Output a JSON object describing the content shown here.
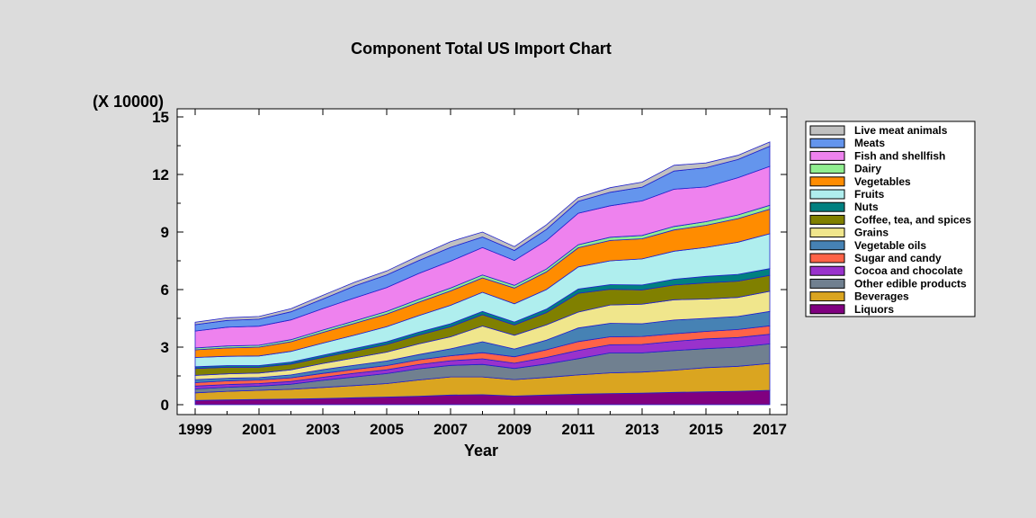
{
  "chart_data": {
    "type": "area",
    "stacked": true,
    "title": "Component Total US Import Chart",
    "xlabel": "Year",
    "ylabel": "",
    "y_multiplier": "(X 10000)",
    "xlim": [
      1999,
      2017
    ],
    "ylim": [
      0,
      15
    ],
    "x_ticks": [
      1999,
      2001,
      2003,
      2005,
      2007,
      2009,
      2011,
      2013,
      2015,
      2017
    ],
    "x_tick_labels": [
      "1999",
      "2001",
      "2003",
      "2005",
      "2007",
      "2009",
      "2011",
      "2013",
      "2015",
      "2017"
    ],
    "y_ticks": [
      0,
      3,
      6,
      9,
      12,
      15
    ],
    "y_tick_labels": [
      "0",
      "3",
      "6",
      "9",
      "12",
      "15"
    ],
    "legend_position": "right",
    "x": [
      1999,
      2000,
      2001,
      2002,
      2003,
      2004,
      2005,
      2006,
      2007,
      2008,
      2009,
      2010,
      2011,
      2012,
      2013,
      2014,
      2015,
      2016,
      2017
    ],
    "series": [
      {
        "name": "Liquors",
        "color": "#800080",
        "values": [
          0.22,
          0.25,
          0.27,
          0.29,
          0.32,
          0.36,
          0.4,
          0.44,
          0.5,
          0.52,
          0.45,
          0.5,
          0.55,
          0.58,
          0.6,
          0.64,
          0.67,
          0.7,
          0.75
        ]
      },
      {
        "name": "Beverages",
        "color": "#daa520",
        "values": [
          0.4,
          0.45,
          0.48,
          0.51,
          0.58,
          0.64,
          0.7,
          0.85,
          0.95,
          0.93,
          0.86,
          0.92,
          1.0,
          1.08,
          1.1,
          1.16,
          1.26,
          1.3,
          1.4
        ]
      },
      {
        "name": "Other edible products",
        "color": "#708090",
        "values": [
          0.2,
          0.21,
          0.22,
          0.27,
          0.37,
          0.45,
          0.52,
          0.58,
          0.6,
          0.65,
          0.58,
          0.7,
          0.85,
          1.04,
          1.0,
          1.02,
          0.99,
          1.0,
          1.02
        ]
      },
      {
        "name": "Cocoa and chocolate",
        "color": "#9932cc",
        "values": [
          0.15,
          0.14,
          0.13,
          0.14,
          0.16,
          0.19,
          0.2,
          0.22,
          0.24,
          0.29,
          0.27,
          0.34,
          0.43,
          0.42,
          0.44,
          0.48,
          0.51,
          0.5,
          0.5
        ]
      },
      {
        "name": "Sugar and candy",
        "color": "#ff6347",
        "values": [
          0.18,
          0.19,
          0.19,
          0.19,
          0.2,
          0.2,
          0.22,
          0.25,
          0.26,
          0.32,
          0.34,
          0.4,
          0.46,
          0.42,
          0.42,
          0.4,
          0.39,
          0.42,
          0.44
        ]
      },
      {
        "name": "Vegetable oils",
        "color": "#4682b4",
        "values": [
          0.16,
          0.14,
          0.12,
          0.15,
          0.2,
          0.22,
          0.24,
          0.27,
          0.36,
          0.57,
          0.4,
          0.5,
          0.71,
          0.7,
          0.66,
          0.71,
          0.68,
          0.68,
          0.75
        ]
      },
      {
        "name": "Grains",
        "color": "#f0e68c",
        "values": [
          0.22,
          0.23,
          0.24,
          0.27,
          0.32,
          0.38,
          0.46,
          0.56,
          0.63,
          0.82,
          0.72,
          0.8,
          0.83,
          0.96,
          1.02,
          1.06,
          1.01,
          0.99,
          1.05
        ]
      },
      {
        "name": "Coffee, tea, and spices",
        "color": "#808000",
        "values": [
          0.36,
          0.34,
          0.3,
          0.3,
          0.32,
          0.36,
          0.4,
          0.46,
          0.52,
          0.59,
          0.54,
          0.64,
          0.98,
          0.82,
          0.74,
          0.77,
          0.84,
          0.85,
          0.83
        ]
      },
      {
        "name": "Nuts",
        "color": "#008080",
        "values": [
          0.09,
          0.09,
          0.09,
          0.1,
          0.11,
          0.13,
          0.14,
          0.15,
          0.16,
          0.17,
          0.15,
          0.18,
          0.22,
          0.24,
          0.26,
          0.3,
          0.34,
          0.35,
          0.35
        ]
      },
      {
        "name": "Fruits",
        "color": "#afeeee",
        "values": [
          0.48,
          0.48,
          0.5,
          0.56,
          0.63,
          0.7,
          0.79,
          0.86,
          0.96,
          1.0,
          0.95,
          1.02,
          1.15,
          1.24,
          1.36,
          1.46,
          1.51,
          1.68,
          1.82
        ]
      },
      {
        "name": "Vegetables",
        "color": "#ff8c00",
        "values": [
          0.4,
          0.44,
          0.46,
          0.5,
          0.56,
          0.61,
          0.65,
          0.7,
          0.75,
          0.75,
          0.82,
          0.92,
          1.0,
          1.06,
          1.05,
          1.11,
          1.15,
          1.23,
          1.28
        ]
      },
      {
        "name": "Dairy",
        "color": "#90ee90",
        "values": [
          0.1,
          0.1,
          0.1,
          0.11,
          0.12,
          0.13,
          0.14,
          0.15,
          0.15,
          0.15,
          0.14,
          0.15,
          0.16,
          0.17,
          0.17,
          0.18,
          0.19,
          0.19,
          0.2
        ]
      },
      {
        "name": "Fish and shellfish",
        "color": "#ee82ee",
        "values": [
          0.88,
          0.98,
          0.99,
          1.03,
          1.12,
          1.2,
          1.25,
          1.35,
          1.4,
          1.43,
          1.3,
          1.48,
          1.64,
          1.64,
          1.8,
          1.94,
          1.81,
          1.94,
          2.03
        ]
      },
      {
        "name": "Meats",
        "color": "#6495ed",
        "values": [
          0.33,
          0.35,
          0.37,
          0.42,
          0.5,
          0.62,
          0.65,
          0.67,
          0.72,
          0.55,
          0.52,
          0.58,
          0.62,
          0.7,
          0.72,
          0.95,
          1.0,
          0.95,
          1.05
        ]
      },
      {
        "name": "Live meat animals",
        "color": "#c0c0c0",
        "values": [
          0.13,
          0.14,
          0.14,
          0.16,
          0.19,
          0.2,
          0.21,
          0.25,
          0.3,
          0.26,
          0.2,
          0.24,
          0.2,
          0.24,
          0.26,
          0.3,
          0.25,
          0.22,
          0.22
        ]
      }
    ]
  }
}
